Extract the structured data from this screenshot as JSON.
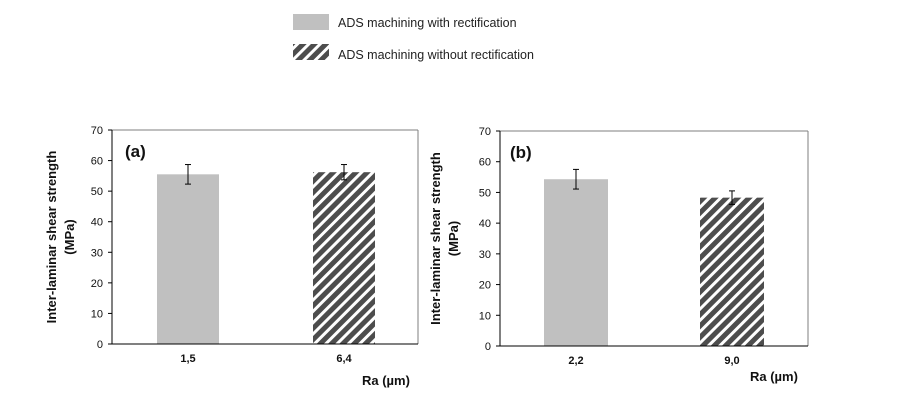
{
  "legend": [
    {
      "label": "ADS machining with rectification",
      "style": "solid",
      "color": "#c0c0c0"
    },
    {
      "label": "ADS machining without rectification",
      "style": "hatched",
      "color": "#4d4d4d"
    }
  ],
  "chart_data": [
    {
      "type": "bar",
      "panel": "(a)",
      "categories": [
        "1,5",
        "6,4"
      ],
      "values": [
        55.5,
        56.2
      ],
      "errors": [
        3.2,
        2.5
      ],
      "styles": [
        "solid",
        "hatched"
      ],
      "xlabel": "Ra (µm)",
      "ylabel_line1": "Inter-laminar shear strength",
      "ylabel_line2": "(MPa)",
      "ylim": [
        0,
        70
      ],
      "yticks": [
        "0",
        "10",
        "20",
        "30",
        "40",
        "50",
        "60",
        "70"
      ]
    },
    {
      "type": "bar",
      "panel": "(b)",
      "categories": [
        "2,2",
        "9,0"
      ],
      "values": [
        54.3,
        48.3
      ],
      "errors": [
        3.2,
        2.2
      ],
      "styles": [
        "solid",
        "hatched"
      ],
      "xlabel": "Ra (µm)",
      "ylabel_line1": "Inter-laminar shear strength",
      "ylabel_line2": "(MPa)",
      "ylim": [
        0,
        70
      ],
      "yticks": [
        "0",
        "10",
        "20",
        "30",
        "40",
        "50",
        "60",
        "70"
      ]
    }
  ]
}
